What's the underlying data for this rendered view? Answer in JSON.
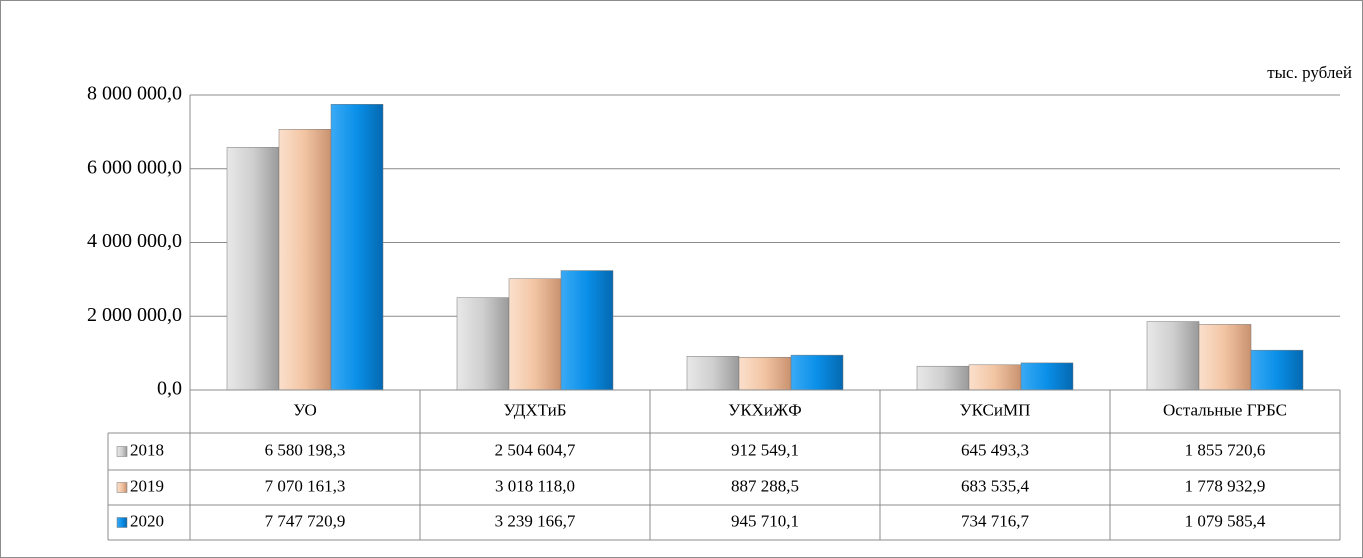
{
  "chart_data": {
    "type": "bar",
    "unit": "тыс. рублей",
    "categories": [
      "УО",
      "УДХТиБ",
      "УКХиЖФ",
      "УКСиМП",
      "Остальные ГРБС"
    ],
    "series": [
      {
        "name": "2018",
        "color": "#c8c8c8",
        "values": [
          6580198.3,
          2504604.7,
          912549.1,
          645493.3,
          1855720.6
        ],
        "value_labels": [
          "6 580 198,3",
          "2 504 604,7",
          "912 549,1",
          "645 493,3",
          "1 855 720,6"
        ]
      },
      {
        "name": "2019",
        "color": "#f2c4a2",
        "values": [
          7070161.3,
          3018118.0,
          887288.5,
          683535.4,
          1778932.9
        ],
        "value_labels": [
          "7 070 161,3",
          "3 018 118,0",
          "887 288,5",
          "683 535,4",
          "1 778 932,9"
        ]
      },
      {
        "name": "2020",
        "color": "#0a8fe8",
        "values": [
          7747720.9,
          3239166.7,
          945710.1,
          734716.7,
          1079585.4
        ],
        "value_labels": [
          "7 747 720,9",
          "3 239 166,7",
          "945 710,1",
          "734 716,7",
          "1 079 585,4"
        ]
      }
    ],
    "ylim": [
      0,
      8000000
    ],
    "yticks": [
      {
        "value": 0,
        "label": "0,0"
      },
      {
        "value": 2000000,
        "label": "2 000 000,0"
      },
      {
        "value": 4000000,
        "label": "4 000 000,0"
      },
      {
        "value": 6000000,
        "label": "6 000 000,0"
      },
      {
        "value": 8000000,
        "label": "8 000 000,0"
      }
    ],
    "grid": true
  }
}
